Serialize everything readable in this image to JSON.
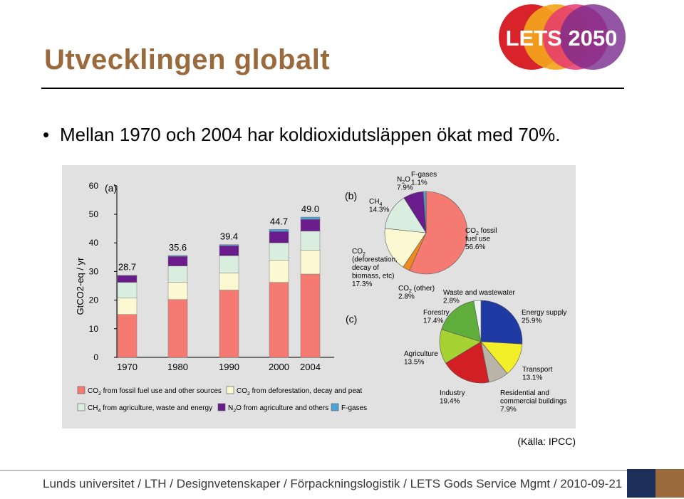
{
  "slide": {
    "title": "Utvecklingen globalt",
    "bullet": "Mellan 1970 och 2004 har koldioxidutsläppen ökat med 70%.",
    "source": "(Källa: IPCC)",
    "footer": "Lunds universitet / LTH / Designvetenskaper / Förpackningslogistik / LETS Gods Service Mgmt / 2010-09-21",
    "logo_text": "LETS 2050"
  },
  "colors": {
    "title": "#9b6a3c",
    "fossil": "#f47a72",
    "deforestation": "#fbf8d2",
    "ch4": "#d9eedf",
    "n2o": "#6a1b8c",
    "fgases": "#4ba3d6",
    "co2_other": "#f08a1e",
    "energy": "#1f3aa3",
    "transport": "#f2ee2a",
    "residential": "#bab4a8",
    "industry": "#d11f24",
    "agriculture": "#a6d233",
    "forestry": "#5fae3c",
    "waste": "#ecf4f2"
  },
  "chart_data": [
    {
      "type": "bar",
      "panel_label": "(a)",
      "ylabel": "GtCO2-eq / yr",
      "ylim": [
        0,
        60
      ],
      "yticks": [
        "0",
        "10",
        "20",
        "30",
        "40",
        "50",
        "60"
      ],
      "categories": [
        "1970",
        "1980",
        "1990",
        "2000",
        "2004"
      ],
      "totals": [
        28.7,
        35.6,
        39.4,
        44.7,
        49.0
      ],
      "total_labels": [
        "28.7",
        "35.6",
        "39.4",
        "44.7",
        "49.0"
      ],
      "series": [
        {
          "name": "CO2 from fossil fuel use and other sources",
          "key": "fossil",
          "values": [
            15.0,
            20.2,
            23.5,
            26.2,
            29.1
          ]
        },
        {
          "name": "CO2 from deforestation, decay and peat",
          "key": "deforestation",
          "values": [
            5.7,
            6.0,
            6.0,
            7.8,
            8.3
          ]
        },
        {
          "name": "CH4 from agriculture, waste and energy",
          "key": "ch4",
          "values": [
            5.5,
            5.7,
            6.0,
            6.0,
            6.7
          ]
        },
        {
          "name": "N2O from agriculture and others",
          "key": "n2o",
          "values": [
            2.4,
            3.4,
            3.5,
            4.0,
            4.1
          ]
        },
        {
          "name": "F-gases",
          "key": "fgases",
          "values": [
            0.1,
            0.3,
            0.4,
            0.7,
            0.8
          ]
        }
      ],
      "legend": [
        {
          "key": "fossil",
          "label": "CO2 from fossil fuel use and other sources"
        },
        {
          "key": "deforestation",
          "label": "CO2 from deforestation, decay and peat"
        },
        {
          "key": "ch4",
          "label": "CH4 from agriculture, waste and energy"
        },
        {
          "key": "n2o",
          "label": "N2O from agriculture and others"
        },
        {
          "key": "fgases",
          "label": "F-gases"
        }
      ]
    },
    {
      "type": "pie",
      "panel_label": "(b)",
      "slices": [
        {
          "key": "fossil",
          "value": 56.6,
          "label": "CO2 fossil fuel use 56.6%"
        },
        {
          "key": "co2_other",
          "value": 2.8,
          "label": "CO2 (other) 2.8%"
        },
        {
          "key": "deforestation",
          "value": 17.3,
          "label": "CO2 (deforestation, decay of biomass, etc) 17.3%"
        },
        {
          "key": "ch4",
          "value": 14.3,
          "label": "CH4 14.3%"
        },
        {
          "key": "n2o",
          "value": 7.9,
          "label": "N2O 7.9%"
        },
        {
          "key": "fgases",
          "value": 1.1,
          "label": "F-gases 1.1%"
        }
      ],
      "labels": {
        "n2o": [
          "N2O",
          "7.9%"
        ],
        "fgases": [
          "F-gases",
          "1.1%"
        ],
        "ch4": [
          "CH4",
          "14.3%"
        ],
        "fossil": [
          "CO2 fossil",
          "fuel use",
          "56.6%"
        ],
        "deforestation": [
          "CO2",
          "(deforestation,",
          "decay of",
          "biomass, etc)",
          "17.3%"
        ],
        "co2_other": [
          "CO2 (other)",
          "2.8%"
        ]
      }
    },
    {
      "type": "pie",
      "panel_label": "(c)",
      "slices": [
        {
          "key": "energy",
          "value": 25.9,
          "label": "Energy supply 25.9%"
        },
        {
          "key": "transport",
          "value": 13.1,
          "label": "Transport 13.1%"
        },
        {
          "key": "residential",
          "value": 7.9,
          "label": "Residential and commercial buildings 7.9%"
        },
        {
          "key": "industry",
          "value": 19.4,
          "label": "Industry 19.4%"
        },
        {
          "key": "agriculture",
          "value": 13.5,
          "label": "Agriculture 13.5%"
        },
        {
          "key": "forestry",
          "value": 17.4,
          "label": "Forestry 17.4%"
        },
        {
          "key": "waste",
          "value": 2.8,
          "label": "Waste and wastewater 2.8%"
        }
      ],
      "labels": {
        "waste": [
          "Waste and wastewater",
          "2.8%"
        ],
        "forestry": [
          "Forestry",
          "17.4%"
        ],
        "energy": [
          "Energy supply",
          "25.9%"
        ],
        "agriculture": [
          "Agriculture",
          "13.5%"
        ],
        "transport": [
          "Transport",
          "13.1%"
        ],
        "industry": [
          "Industry",
          "19.4%"
        ],
        "residential": [
          "Residential and",
          "commercial buildings",
          "7.9%"
        ]
      }
    }
  ]
}
